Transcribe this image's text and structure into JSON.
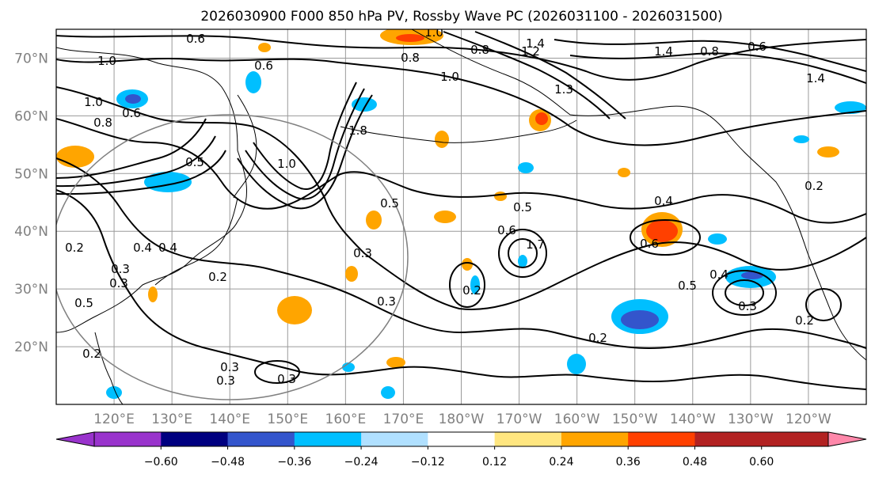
{
  "title": "2026030900 F000 850 hPa PV, Rossby Wave PC (2026031100 - 2026031500)",
  "map": {
    "lat_labels": [
      "70°N",
      "60°N",
      "50°N",
      "40°N",
      "30°N",
      "20°N"
    ],
    "lat_values": [
      70,
      60,
      50,
      40,
      30,
      20
    ],
    "lon_labels": [
      "120°E",
      "130°E",
      "140°E",
      "150°E",
      "160°E",
      "170°E",
      "180°W",
      "170°W",
      "160°W",
      "150°W",
      "140°W",
      "130°W",
      "120°W"
    ],
    "lon_values": [
      120,
      130,
      140,
      150,
      160,
      170,
      180,
      190,
      200,
      210,
      220,
      230,
      240
    ],
    "extent": {
      "lon_min": 110,
      "lon_max": 250,
      "lat_min": 10,
      "lat_max": 75
    },
    "pv_contour_labels": [
      "0.6",
      "0.8",
      "1.0",
      "1.0",
      "1.4",
      "1.2",
      "0.8",
      "1.0",
      "0.8",
      "0.6",
      "0.5",
      "0.6",
      "0.5",
      "0.5",
      "0.4",
      "0.4",
      "0.3",
      "0.2",
      "0.3",
      "0.5",
      "0.2",
      "0.2",
      "0.3",
      "0.3",
      "0.3",
      "0.6",
      "0.6",
      "0.5",
      "0.4",
      "0.3",
      "0.2",
      "0.2",
      "0.2",
      "1.4",
      "0.8",
      "0.6",
      "0.4",
      "1.0",
      "1.3",
      "1.4",
      "1.0",
      "1.8",
      "0.3",
      "0.3",
      "0.2",
      "1.7"
    ]
  },
  "colorbar": {
    "ticks": [
      "−0.60",
      "−0.48",
      "−0.36",
      "−0.24",
      "−0.12",
      "0.12",
      "0.24",
      "0.36",
      "0.48",
      "0.60"
    ],
    "colors": [
      "#9933cc",
      "#000080",
      "#3355cc",
      "#00bfff",
      "#b0e0ff",
      "#ffffff",
      "#ffe680",
      "#ffa500",
      "#ff4000",
      "#b22222",
      "#ff88aa"
    ]
  }
}
